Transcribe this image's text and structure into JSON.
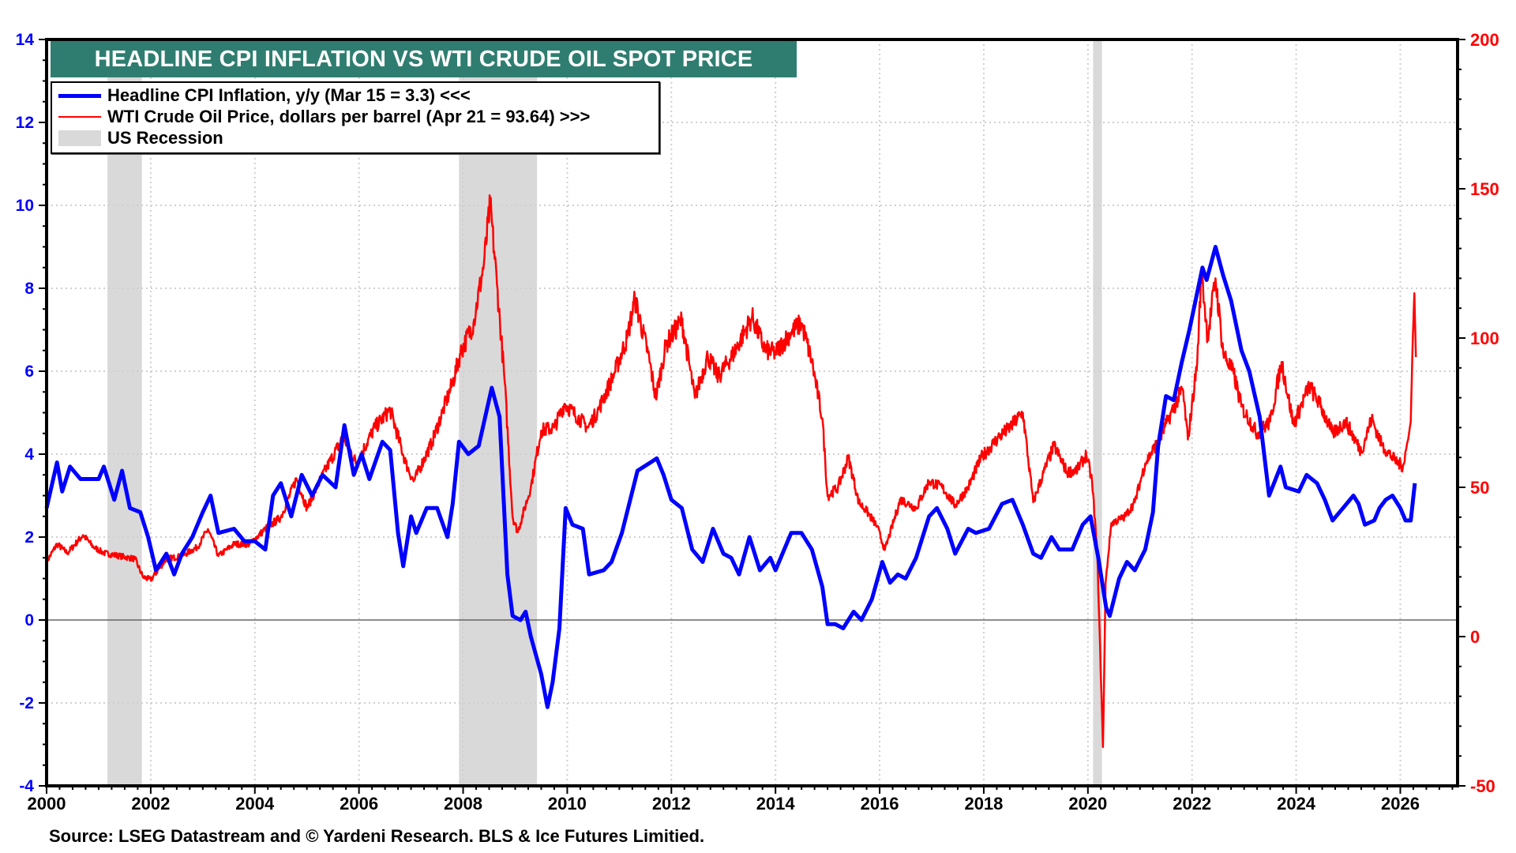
{
  "chart_data": {
    "type": "line",
    "title": "HEADLINE CPI INFLATION VS WTI CRUDE OIL SPOT PRICE",
    "source": "Source: LSEG Datastream and © Yardeni Research. BLS & Ice Futures Limitied.",
    "x_ticks": [
      "2000",
      "2002",
      "2004",
      "2006",
      "2008",
      "2010",
      "2012",
      "2014",
      "2016",
      "2018",
      "2020",
      "2022",
      "2024",
      "2026"
    ],
    "xlim": [
      2000,
      2027.1
    ],
    "left_axis": {
      "ylim": [
        -4,
        14
      ],
      "ticks": [
        "14",
        "12",
        "10",
        "8",
        "6",
        "4",
        "2",
        "0",
        "-2",
        "-4"
      ],
      "color": "#0000ff"
    },
    "right_axis": {
      "ylim": [
        -50,
        200
      ],
      "ticks": [
        "200",
        "150",
        "100",
        "50",
        "0",
        "-50"
      ],
      "color": "#ff0000"
    },
    "grid": true,
    "legend_placement": "top-left",
    "legend": [
      {
        "label": "Headline CPI Inflation, y/y (Mar 15 = 3.3) <<<",
        "color": "#0000ff"
      },
      {
        "label": "WTI Crude Oil Price, dollars per barrel (Apr 21 = 93.64) >>>",
        "color": "#ff0000"
      },
      {
        "label": "US Recession",
        "color": "#d9d9d9"
      }
    ],
    "recessions": [
      [
        2001.17,
        2001.83
      ],
      [
        2007.92,
        2009.42
      ],
      [
        2020.1,
        2020.27
      ]
    ],
    "series": [
      {
        "name": "Headline CPI Inflation, y/y",
        "axis": "left",
        "color": "#0000ff",
        "points": [
          [
            2000.0,
            2.7
          ],
          [
            2000.2,
            3.8
          ],
          [
            2000.3,
            3.1
          ],
          [
            2000.45,
            3.7
          ],
          [
            2000.65,
            3.4
          ],
          [
            2001.0,
            3.4
          ],
          [
            2001.1,
            3.7
          ],
          [
            2001.3,
            2.9
          ],
          [
            2001.45,
            3.6
          ],
          [
            2001.6,
            2.7
          ],
          [
            2001.8,
            2.6
          ],
          [
            2001.95,
            2.0
          ],
          [
            2002.1,
            1.2
          ],
          [
            2002.3,
            1.6
          ],
          [
            2002.45,
            1.1
          ],
          [
            2002.6,
            1.6
          ],
          [
            2002.8,
            2.0
          ],
          [
            2003.0,
            2.6
          ],
          [
            2003.15,
            3.0
          ],
          [
            2003.3,
            2.1
          ],
          [
            2003.6,
            2.2
          ],
          [
            2003.8,
            1.9
          ],
          [
            2004.0,
            1.9
          ],
          [
            2004.2,
            1.7
          ],
          [
            2004.35,
            3.0
          ],
          [
            2004.5,
            3.3
          ],
          [
            2004.7,
            2.5
          ],
          [
            2004.9,
            3.5
          ],
          [
            2005.1,
            3.0
          ],
          [
            2005.3,
            3.5
          ],
          [
            2005.55,
            3.2
          ],
          [
            2005.72,
            4.7
          ],
          [
            2005.9,
            3.5
          ],
          [
            2006.05,
            4.0
          ],
          [
            2006.2,
            3.4
          ],
          [
            2006.45,
            4.3
          ],
          [
            2006.6,
            4.1
          ],
          [
            2006.75,
            2.1
          ],
          [
            2006.85,
            1.3
          ],
          [
            2007.0,
            2.5
          ],
          [
            2007.1,
            2.1
          ],
          [
            2007.3,
            2.7
          ],
          [
            2007.5,
            2.7
          ],
          [
            2007.7,
            2.0
          ],
          [
            2007.8,
            2.8
          ],
          [
            2007.92,
            4.3
          ],
          [
            2008.1,
            4.0
          ],
          [
            2008.3,
            4.2
          ],
          [
            2008.55,
            5.6
          ],
          [
            2008.7,
            4.9
          ],
          [
            2008.85,
            1.1
          ],
          [
            2008.95,
            0.1
          ],
          [
            2009.1,
            0.0
          ],
          [
            2009.2,
            0.2
          ],
          [
            2009.3,
            -0.4
          ],
          [
            2009.5,
            -1.3
          ],
          [
            2009.62,
            -2.1
          ],
          [
            2009.72,
            -1.5
          ],
          [
            2009.85,
            -0.2
          ],
          [
            2009.97,
            2.7
          ],
          [
            2010.1,
            2.3
          ],
          [
            2010.3,
            2.2
          ],
          [
            2010.42,
            1.1
          ],
          [
            2010.7,
            1.2
          ],
          [
            2010.85,
            1.4
          ],
          [
            2011.05,
            2.1
          ],
          [
            2011.35,
            3.6
          ],
          [
            2011.6,
            3.8
          ],
          [
            2011.72,
            3.9
          ],
          [
            2011.85,
            3.5
          ],
          [
            2012.0,
            2.9
          ],
          [
            2012.2,
            2.7
          ],
          [
            2012.4,
            1.7
          ],
          [
            2012.6,
            1.4
          ],
          [
            2012.8,
            2.2
          ],
          [
            2013.0,
            1.6
          ],
          [
            2013.15,
            1.5
          ],
          [
            2013.3,
            1.1
          ],
          [
            2013.5,
            2.0
          ],
          [
            2013.7,
            1.2
          ],
          [
            2013.9,
            1.5
          ],
          [
            2014.0,
            1.2
          ],
          [
            2014.3,
            2.1
          ],
          [
            2014.5,
            2.1
          ],
          [
            2014.7,
            1.7
          ],
          [
            2014.9,
            0.8
          ],
          [
            2015.0,
            -0.1
          ],
          [
            2015.15,
            -0.1
          ],
          [
            2015.3,
            -0.2
          ],
          [
            2015.5,
            0.2
          ],
          [
            2015.65,
            0.0
          ],
          [
            2015.85,
            0.5
          ],
          [
            2016.05,
            1.4
          ],
          [
            2016.2,
            0.9
          ],
          [
            2016.35,
            1.1
          ],
          [
            2016.5,
            1.0
          ],
          [
            2016.7,
            1.5
          ],
          [
            2016.95,
            2.5
          ],
          [
            2017.1,
            2.7
          ],
          [
            2017.3,
            2.2
          ],
          [
            2017.45,
            1.6
          ],
          [
            2017.7,
            2.2
          ],
          [
            2017.85,
            2.1
          ],
          [
            2018.1,
            2.2
          ],
          [
            2018.35,
            2.8
          ],
          [
            2018.55,
            2.9
          ],
          [
            2018.75,
            2.3
          ],
          [
            2018.95,
            1.6
          ],
          [
            2019.1,
            1.5
          ],
          [
            2019.3,
            2.0
          ],
          [
            2019.45,
            1.7
          ],
          [
            2019.7,
            1.7
          ],
          [
            2019.9,
            2.3
          ],
          [
            2020.05,
            2.5
          ],
          [
            2020.2,
            1.5
          ],
          [
            2020.35,
            0.3
          ],
          [
            2020.42,
            0.1
          ],
          [
            2020.6,
            1.0
          ],
          [
            2020.75,
            1.4
          ],
          [
            2020.9,
            1.2
          ],
          [
            2021.1,
            1.7
          ],
          [
            2021.25,
            2.6
          ],
          [
            2021.35,
            4.2
          ],
          [
            2021.5,
            5.4
          ],
          [
            2021.65,
            5.3
          ],
          [
            2021.8,
            6.2
          ],
          [
            2021.95,
            7.0
          ],
          [
            2022.2,
            8.5
          ],
          [
            2022.28,
            8.2
          ],
          [
            2022.45,
            9.0
          ],
          [
            2022.6,
            8.3
          ],
          [
            2022.75,
            7.7
          ],
          [
            2022.95,
            6.5
          ],
          [
            2023.1,
            6.0
          ],
          [
            2023.3,
            4.9
          ],
          [
            2023.48,
            3.0
          ],
          [
            2023.7,
            3.7
          ],
          [
            2023.8,
            3.2
          ],
          [
            2024.05,
            3.1
          ],
          [
            2024.2,
            3.5
          ],
          [
            2024.4,
            3.3
          ],
          [
            2024.55,
            2.9
          ],
          [
            2024.7,
            2.4
          ],
          [
            2024.9,
            2.7
          ],
          [
            2025.1,
            3.0
          ],
          [
            2025.2,
            2.8
          ],
          [
            2025.32,
            2.3
          ],
          [
            2025.5,
            2.4
          ],
          [
            2025.6,
            2.7
          ],
          [
            2025.72,
            2.9
          ],
          [
            2025.85,
            3.0
          ],
          [
            2026.0,
            2.7
          ],
          [
            2026.1,
            2.4
          ],
          [
            2026.2,
            2.4
          ],
          [
            2026.28,
            3.3
          ]
        ]
      },
      {
        "name": "WTI Crude Oil Price, dollars per barrel",
        "axis": "right",
        "color": "#ff0000",
        "points": [
          [
            2000.0,
            25
          ],
          [
            2000.2,
            31
          ],
          [
            2000.4,
            28
          ],
          [
            2000.7,
            34
          ],
          [
            2000.9,
            30
          ],
          [
            2001.1,
            28
          ],
          [
            2001.4,
            27
          ],
          [
            2001.7,
            26
          ],
          [
            2001.85,
            20
          ],
          [
            2002.0,
            19
          ],
          [
            2002.3,
            26
          ],
          [
            2002.6,
            27
          ],
          [
            2002.9,
            30
          ],
          [
            2003.1,
            36
          ],
          [
            2003.3,
            27
          ],
          [
            2003.6,
            31
          ],
          [
            2003.9,
            31
          ],
          [
            2004.2,
            36
          ],
          [
            2004.5,
            40
          ],
          [
            2004.8,
            53
          ],
          [
            2005.0,
            43
          ],
          [
            2005.3,
            54
          ],
          [
            2005.7,
            67
          ],
          [
            2005.95,
            58
          ],
          [
            2006.3,
            70
          ],
          [
            2006.6,
            76
          ],
          [
            2006.9,
            58
          ],
          [
            2007.05,
            52
          ],
          [
            2007.4,
            65
          ],
          [
            2007.6,
            75
          ],
          [
            2007.8,
            85
          ],
          [
            2007.95,
            95
          ],
          [
            2008.2,
            105
          ],
          [
            2008.4,
            125
          ],
          [
            2008.52,
            145
          ],
          [
            2008.65,
            118
          ],
          [
            2008.8,
            85
          ],
          [
            2008.95,
            40
          ],
          [
            2009.05,
            35
          ],
          [
            2009.3,
            50
          ],
          [
            2009.5,
            69
          ],
          [
            2009.75,
            70
          ],
          [
            2009.95,
            78
          ],
          [
            2010.4,
            70
          ],
          [
            2010.6,
            76
          ],
          [
            2010.9,
            88
          ],
          [
            2011.15,
            100
          ],
          [
            2011.3,
            113
          ],
          [
            2011.55,
            95
          ],
          [
            2011.7,
            80
          ],
          [
            2011.9,
            98
          ],
          [
            2012.2,
            106
          ],
          [
            2012.45,
            80
          ],
          [
            2012.7,
            94
          ],
          [
            2012.9,
            87
          ],
          [
            2013.2,
            95
          ],
          [
            2013.55,
            107
          ],
          [
            2013.8,
            96
          ],
          [
            2014.0,
            95
          ],
          [
            2014.3,
            102
          ],
          [
            2014.5,
            105
          ],
          [
            2014.7,
            92
          ],
          [
            2014.9,
            73
          ],
          [
            2015.0,
            47
          ],
          [
            2015.2,
            50
          ],
          [
            2015.4,
            60
          ],
          [
            2015.6,
            45
          ],
          [
            2015.75,
            42
          ],
          [
            2015.95,
            37
          ],
          [
            2016.1,
            29
          ],
          [
            2016.4,
            46
          ],
          [
            2016.7,
            43
          ],
          [
            2016.95,
            52
          ],
          [
            2017.2,
            50
          ],
          [
            2017.45,
            44
          ],
          [
            2017.7,
            50
          ],
          [
            2017.95,
            60
          ],
          [
            2018.3,
            67
          ],
          [
            2018.5,
            70
          ],
          [
            2018.75,
            75
          ],
          [
            2018.95,
            45
          ],
          [
            2019.15,
            55
          ],
          [
            2019.35,
            64
          ],
          [
            2019.6,
            55
          ],
          [
            2019.8,
            56
          ],
          [
            2019.97,
            61
          ],
          [
            2020.08,
            52
          ],
          [
            2020.18,
            28
          ],
          [
            2020.29,
            -37
          ],
          [
            2020.34,
            18
          ],
          [
            2020.45,
            38
          ],
          [
            2020.7,
            40
          ],
          [
            2020.9,
            45
          ],
          [
            2021.1,
            58
          ],
          [
            2021.4,
            67
          ],
          [
            2021.55,
            73
          ],
          [
            2021.82,
            83
          ],
          [
            2021.92,
            66
          ],
          [
            2022.1,
            92
          ],
          [
            2022.18,
            123
          ],
          [
            2022.3,
            100
          ],
          [
            2022.45,
            120
          ],
          [
            2022.6,
            95
          ],
          [
            2022.8,
            88
          ],
          [
            2022.95,
            77
          ],
          [
            2023.25,
            68
          ],
          [
            2023.5,
            72
          ],
          [
            2023.72,
            92
          ],
          [
            2023.95,
            71
          ],
          [
            2024.25,
            84
          ],
          [
            2024.45,
            78
          ],
          [
            2024.7,
            68
          ],
          [
            2024.95,
            72
          ],
          [
            2025.25,
            62
          ],
          [
            2025.45,
            73
          ],
          [
            2025.65,
            64
          ],
          [
            2025.9,
            59
          ],
          [
            2026.05,
            57
          ],
          [
            2026.15,
            66
          ],
          [
            2026.2,
            72
          ],
          [
            2026.24,
            100
          ],
          [
            2026.27,
            115
          ],
          [
            2026.3,
            93.64
          ]
        ]
      }
    ]
  }
}
